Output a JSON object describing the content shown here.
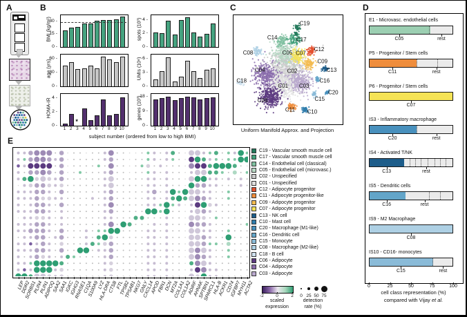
{
  "panels": {
    "a": "A",
    "b": "B",
    "c": "C",
    "d": "D",
    "e": "E"
  },
  "panel_a": {
    "items": [
      "visium-slide",
      "he-stained-tissue",
      "spatial-spots-tissue",
      "spot-cluster-map"
    ],
    "spot_colors": [
      "#2f8f7f",
      "#3a78b5",
      "#e3cf4e",
      "#1d5d8a",
      "#6b4f8a",
      "#7fc0a0",
      "#c9c9c9"
    ]
  },
  "panel_b": {
    "xlabel": "subject number (ordered from low to high BMI)",
    "subjects": [
      "1",
      "2",
      "3",
      "4",
      "5",
      "6",
      "7",
      "8",
      "9",
      "10"
    ]
  },
  "panel_c": {
    "caption": "Uniform Manifold Approx. and Projection"
  },
  "panel_d": {
    "xlabel1": "cell class representation (%)",
    "xlabel2": "compared with Vijay et al.",
    "axis_ticks": [
      "0",
      "25",
      "50",
      "75",
      "100"
    ]
  },
  "panel_e": {
    "expression_scale": {
      "ticks": [
        "-2",
        "0",
        "2"
      ],
      "label1": "scaled",
      "label2": "expression",
      "colors": [
        "#3b1f5e",
        "#8d6bab",
        "#ece8ef",
        "#a8d8bd",
        "#2e9e73"
      ]
    },
    "detection_scale": {
      "ticks": [
        "0",
        "25",
        "50",
        "75"
      ],
      "label1": "detection",
      "label2": "rate (%)",
      "sizes": [
        1.8,
        3.6,
        6,
        9
      ]
    },
    "dot_classes": {
      ".": {
        "s": 2,
        "c": "#bdbdbd"
      },
      ",": {
        "s": 1.5,
        "c": "#d4d4d4"
      },
      "o": {
        "s": 4,
        "c": "#c7bdd2"
      },
      "l": {
        "s": 5.5,
        "c": "#d6d0dd"
      },
      "O": {
        "s": 6.5,
        "c": "#b2a4c4"
      },
      "L": {
        "s": 8,
        "c": "#cfc7d9"
      },
      "P": {
        "s": 8,
        "c": "#9d8ab5"
      },
      "D": {
        "s": 8,
        "c": "#5b3a80"
      },
      "d": {
        "s": 4.5,
        "c": "#7a5fa0"
      },
      "g": {
        "s": 4,
        "c": "#82c9a6"
      },
      "h": {
        "s": 6,
        "c": "#aed9c3"
      },
      "m": {
        "s": 6,
        "c": "#4fae85"
      },
      "G": {
        "s": 8.5,
        "c": "#2e9e73"
      }
    }
  },
  "chart_data": [
    {
      "panel": "B",
      "type": "bar",
      "xlabel": "subject number (ordered from low to high BMI)",
      "categories": [
        "1",
        "2",
        "3",
        "4",
        "5",
        "6",
        "7",
        "8",
        "9",
        "10"
      ],
      "charts": [
        {
          "id": "bmi",
          "ylabel": "BMI (kg/m²)",
          "ticks": [
            0,
            15,
            30
          ],
          "ymax": 38,
          "color": "#46a380",
          "dashed_at": 30,
          "col": 0,
          "row": 0,
          "values": [
            20,
            23,
            24,
            28.5,
            28.5,
            31.5,
            32,
            32.5,
            33,
            36
          ]
        },
        {
          "id": "age",
          "ylabel": "age (yrs)",
          "ticks": [
            0,
            30,
            60
          ],
          "ymax": 70,
          "color": "#c6c6c6",
          "col": 0,
          "row": 1,
          "values": [
            45,
            54,
            38,
            40,
            45,
            40,
            66,
            60,
            53,
            66
          ]
        },
        {
          "id": "homa",
          "ylabel": "HOMA-IR",
          "ticks": [
            0,
            2,
            4
          ],
          "ymax": 4.6,
          "color": "#53306e",
          "col": 0,
          "row": 2,
          "asterisk_index": 2,
          "show_x": true,
          "values": [
            0.3,
            1.7,
            0,
            2.5,
            0.8,
            1.5,
            3.8,
            1.5,
            1.7,
            4.1
          ]
        },
        {
          "id": "spots",
          "ylabel": "spots (10³)",
          "ticks": [
            0,
            2,
            4
          ],
          "ymax": 4.8,
          "color": "#46a380",
          "col": 1,
          "row": 0,
          "values": [
            2.2,
            2.1,
            4.0,
            1.9,
            4.1,
            4.5,
            2.2,
            1.6,
            2.0,
            3.5
          ]
        },
        {
          "id": "umis",
          "ylabel": "UMIs (10⁶)",
          "ticks": [
            0,
            3,
            6
          ],
          "ymax": 7,
          "color": "#c6c6c6",
          "col": 1,
          "row": 1,
          "values": [
            1.5,
            3.3,
            6.4,
            1.0,
            2.1,
            5.6,
            3.4,
            1.8,
            3.6,
            4.0
          ]
        },
        {
          "id": "genes",
          "ylabel": "genes (10³)",
          "ticks": [
            0,
            9,
            18
          ],
          "ymax": 20,
          "color": "#53306e",
          "col": 1,
          "row": 2,
          "show_x": true,
          "values": [
            16.5,
            17.5,
            18.2,
            16.3,
            17.2,
            18.1,
            17.9,
            16.4,
            17.6,
            18.0
          ]
        }
      ]
    },
    {
      "panel": "C",
      "type": "scatter",
      "title": "UMAP",
      "clusters": [
        {
          "id": "C02",
          "color": "#c8c8c8",
          "cx": 0.5,
          "cy": 0.48,
          "r": 0.15,
          "n": 560,
          "lx": 0.545,
          "ly": 0.515
        },
        {
          "id": "C01",
          "color": "#dfdfdf",
          "cx": 0.47,
          "cy": 0.63,
          "r": 0.14,
          "n": 520,
          "lx": 0.46,
          "ly": 0.655
        },
        {
          "id": "C03",
          "color": "#b9a8cd",
          "cx": 0.62,
          "cy": 0.62,
          "r": 0.1,
          "n": 300,
          "lx": 0.655,
          "ly": 0.655
        },
        {
          "id": "C04",
          "color": "#8a6cab",
          "cx": 0.3,
          "cy": 0.55,
          "r": 0.1,
          "n": 320,
          "lx": 0.245,
          "ly": 0.505
        },
        {
          "id": "C06",
          "color": "#5c3a80",
          "cx": 0.34,
          "cy": 0.76,
          "r": 0.09,
          "n": 320,
          "lx": 0.27,
          "ly": 0.79
        },
        {
          "id": "C05",
          "color": "#b8d8c5",
          "cx": 0.47,
          "cy": 0.35,
          "r": 0.1,
          "n": 260,
          "lx": 0.5,
          "ly": 0.345
        },
        {
          "id": "C07",
          "color": "#f5e356",
          "cx": 0.6,
          "cy": 0.38,
          "r": 0.06,
          "n": 140,
          "lx": 0.625,
          "ly": 0.35
        },
        {
          "id": "C14",
          "color": "#7fc0a0",
          "cx": 0.45,
          "cy": 0.24,
          "r": 0.05,
          "n": 90,
          "lx": 0.36,
          "ly": 0.205
        },
        {
          "id": "C17",
          "color": "#41a07a",
          "cx": 0.57,
          "cy": 0.22,
          "r": 0.05,
          "n": 90,
          "lx": 0.63,
          "ly": 0.225
        },
        {
          "id": "C19",
          "color": "#25795c",
          "cx": 0.595,
          "cy": 0.115,
          "r": 0.03,
          "n": 40,
          "lx": 0.66,
          "ly": 0.075
        },
        {
          "id": "",
          "color": "#25795c",
          "cx": 0.585,
          "cy": 0.17,
          "r": 0.018,
          "n": 18,
          "lx": null,
          "ly": null
        },
        {
          "id": "C08",
          "color": "#aed0e4",
          "cx": 0.22,
          "cy": 0.34,
          "r": 0.035,
          "n": 60,
          "lx": 0.135,
          "ly": 0.345
        },
        {
          "id": "C12",
          "color": "#e4502e",
          "cx": 0.72,
          "cy": 0.33,
          "r": 0.035,
          "n": 70,
          "lx": 0.795,
          "ly": 0.315
        },
        {
          "id": "C09",
          "color": "#f3bb4f",
          "cx": 0.7,
          "cy": 0.45,
          "r": 0.045,
          "n": 90,
          "lx": 0.825,
          "ly": 0.425
        },
        {
          "id": "C13",
          "color": "#1d5d8a",
          "cx": 0.85,
          "cy": 0.5,
          "r": 0.025,
          "n": 40,
          "lx": 0.91,
          "ly": 0.505
        },
        {
          "id": "C18",
          "color": "#cfe2ef",
          "cx": 0.065,
          "cy": 0.63,
          "r": 0.025,
          "n": 35,
          "lx": 0.075,
          "ly": 0.605
        },
        {
          "id": "C16",
          "color": "#63a5c9",
          "cx": 0.78,
          "cy": 0.6,
          "r": 0.02,
          "n": 30,
          "lx": 0.845,
          "ly": 0.605
        },
        {
          "id": "C20",
          "color": "#4890bd",
          "cx": 0.87,
          "cy": 0.72,
          "r": 0.018,
          "n": 28,
          "lx": 0.925,
          "ly": 0.715
        },
        {
          "id": "C15",
          "color": "#8abbd8",
          "cx": 0.75,
          "cy": 0.73,
          "r": 0.02,
          "n": 28,
          "lx": 0.8,
          "ly": 0.775
        },
        {
          "id": "C11",
          "color": "#ef8d3c",
          "cx": 0.54,
          "cy": 0.85,
          "r": 0.035,
          "n": 70,
          "lx": 0.525,
          "ly": 0.875
        },
        {
          "id": "C10",
          "color": "#2f7cab",
          "cx": 0.66,
          "cy": 0.88,
          "r": 0.025,
          "n": 45,
          "lx": 0.73,
          "ly": 0.895
        }
      ]
    },
    {
      "panel": "D",
      "type": "bar",
      "rows": [
        {
          "title": "E1 - Microvasc. endothelial cells",
          "color": "#9ccfb2",
          "pct": 73,
          "dashes": [
            72
          ],
          "ticks": [
            {
              "label": "C05",
              "pos": 36
            },
            {
              "label": "rest",
              "pos": 86
            }
          ]
        },
        {
          "title": "P5 - Progenitor / Stem cells",
          "color": "#ef8d3c",
          "pct": 57,
          "dashes": [
            57,
            82
          ],
          "ticks": [
            {
              "label": "C11",
              "pos": 28
            },
            {
              "label": "rest",
              "pos": 80
            }
          ]
        },
        {
          "title": "P6 - Progenitor / Stem cells",
          "color": "#f5e356",
          "pct": 100,
          "dashes": [],
          "ticks": [
            {
              "label": "C07",
              "pos": 50
            }
          ]
        },
        {
          "title": "IS3 - Inflammatory macrophage",
          "color": "#4890bd",
          "pct": 57,
          "dashes": [
            57
          ],
          "ticks": [
            {
              "label": "C20",
              "pos": 28
            },
            {
              "label": "rest",
              "pos": 80
            }
          ]
        },
        {
          "title": "IS4 - Activated T/NK",
          "color": "#1d5d8a",
          "pct": 42,
          "dashes": [
            48,
            55,
            62,
            70,
            78,
            85,
            92
          ],
          "ticks": [
            {
              "label": "C13",
              "pos": 21
            },
            {
              "label": "rest",
              "pos": 68
            }
          ]
        },
        {
          "title": "IS5 - Dendritic cells",
          "color": "#63a5c9",
          "pct": 43,
          "dashes": [
            72,
            85
          ],
          "ticks": [
            {
              "label": "C16",
              "pos": 21
            },
            {
              "label": "rest",
              "pos": 66
            }
          ]
        },
        {
          "title": "IS9 - M2 Macrophage",
          "color": "#aed0e4",
          "pct": 100,
          "dashes": [],
          "ticks": [
            {
              "label": "C08",
              "pos": 50
            }
          ]
        },
        {
          "title": "IS10 - CD16- monocytes",
          "color": "#8abbd8",
          "pct": 77,
          "dashes": [
            76
          ],
          "ticks": [
            {
              "label": "C15",
              "pos": 38
            },
            {
              "label": "rest",
              "pos": 88
            }
          ]
        }
      ]
    },
    {
      "panel": "E",
      "type": "heatmap",
      "genes": [
        "LEP",
        "DDR2",
        "SORBS1",
        "PLIN4",
        "PLIN1",
        "ADIPOQ",
        "SAA2",
        "SAA1",
        "IGKC",
        "IGHG3",
        "RNASE1",
        "C1QA",
        "S100A9",
        "LYZ",
        "HLA-DRA",
        "CTSB",
        "FTL",
        "TPSB2",
        "TPSAB1",
        "NKG7",
        "GNLY",
        "CXCL14",
        "APOD",
        "FBN1",
        "DCN",
        "MT2A",
        "COL1A1",
        "COL1A2",
        "ADIRF",
        "AHNAK",
        "SPTBN1",
        "SPARCL1",
        "HLA-B",
        "ACKR1",
        "CD74",
        "IGFBP7",
        "MYH11",
        "ACTA2"
      ],
      "clusters": [
        {
          "id": "C19",
          "color": "#25795c",
          "label": "C19 - Vascular smooth muscle cell"
        },
        {
          "id": "C17",
          "color": "#41a07a",
          "label": "C17 - Vascular smooth muscle cell"
        },
        {
          "id": "C14",
          "color": "#7fc0a0",
          "label": "C14 - Endothelial cell (classical)"
        },
        {
          "id": "C05",
          "color": "#b8d8c5",
          "label": "C05 - Endothelial cell (microvasc.)"
        },
        {
          "id": "C02",
          "color": "#c8c8c8",
          "label": "C02 - Unspecified"
        },
        {
          "id": "C01",
          "color": "#dfdfdf",
          "label": "C01 - Unspecified"
        },
        {
          "id": "C12",
          "color": "#e4502e",
          "label": "C12 - Adipocyte progenitor"
        },
        {
          "id": "C11",
          "color": "#ef8d3c",
          "label": "C11 - Adipocyte progenitor-like"
        },
        {
          "id": "C09",
          "color": "#f3bb4f",
          "label": "C09 - Adipocyte progenitor"
        },
        {
          "id": "C07",
          "color": "#f5e356",
          "label": "C07 - Adipocyte progenitor"
        },
        {
          "id": "C13",
          "color": "#1d5d8a",
          "label": "C13 - NK cell"
        },
        {
          "id": "C10",
          "color": "#2f7cab",
          "label": "C10 - Mast cell"
        },
        {
          "id": "C20",
          "color": "#4890bd",
          "label": "C20 - Macrophage (M1-like)"
        },
        {
          "id": "C16",
          "color": "#63a5c9",
          "label": "C16 - Dendritic cell"
        },
        {
          "id": "C15",
          "color": "#8abbd8",
          "label": "C15 - Monocyte"
        },
        {
          "id": "C08",
          "color": "#aed0e4",
          "label": "C08 - Macrophage (M2-like)"
        },
        {
          "id": "C18",
          "color": "#cfe2ef",
          "label": "C18 - B cell"
        },
        {
          "id": "C06",
          "color": "#5c3a80",
          "label": "C06 - Adipocyte"
        },
        {
          "id": "C04",
          "color": "#8a6cab",
          "label": "C04 - Adipocyte"
        },
        {
          "id": "C03",
          "color": "#b9a8cd",
          "label": "C03 - Adipocyte"
        }
      ],
      "matrix": [
        "ooOPPP.O,..,..oP..,,.go.om.,LLogm.goGg",
        "ogOPPOoO,.....oO..,..go.og.,DGmog.ggGG",
        "doDDDD.O,....g.P..,.gl.o...,PDDmGGGm.,",
        "o.OOPO.O,.g...oO..,..go.o..,oLLmmg.h.g",
        "omGlLloO......oL.....oo.o..,LGGoo.o.o.",
        ",olOOlol......oL.....oo.o..,GOOoo...o.",
        "oooOOo.O......oO.....oO.oGgGLLoo..g...",
        "oooOlloo....o.oO.....oo.omGmLPOo..g...",
        "o.oOOo.O......oP.....oogGgo,oDGlo.....",
        "oooOOo.o......oO.....GGgG..,oLOo......",
        ",oollo.o......oo...mm...o..,LLl.g.....",
        "oooOOo.o......oP.Gm...o.o..,POOo.....g",
        "ooOOOo.O...o.ggGG....oo.o..,LLoo..g...",
        ".ooOO.oO...o.mGl.....oo.o..,LLOo..G...",
        "oodoOo.l...omglO.....oo.o..,LLOgg.h...",
        "oooOOo.O..GG.ooO.....oo.o..,LPLo..g...",
        "o.oOlo.omg....oO.....oo.o..,LPOo..g...",
        "oogGGGGm......ol.....oo.o..,mPLo......",
        "odoGGGol......ol.....oo.o..,oDPoo.....",
        "GGmLLlol......ol.....oo.o..,LlGoo....."
      ]
    }
  ]
}
